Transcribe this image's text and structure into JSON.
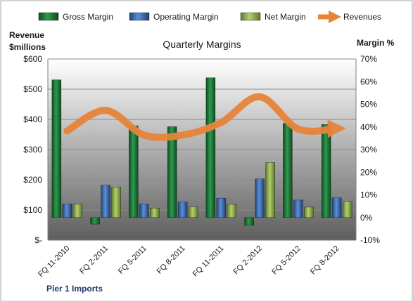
{
  "chart_data": {
    "type": "bar",
    "title": "Quarterly Margins",
    "subtitle": "Pier 1 Imports",
    "y_left_label": [
      "Revenue",
      "$millions"
    ],
    "y_right_label": "Margin %",
    "categories": [
      "FQ 11-2010",
      "FQ 2-2011",
      "FQ 5-2011",
      "FQ 8-2011",
      "FQ 11-2011",
      "FQ 2-2012",
      "FQ 5-2012",
      "FQ 8-2012"
    ],
    "y_left_ticks": [
      "$-",
      "$100",
      "$200",
      "$300",
      "$400",
      "$500",
      "$600"
    ],
    "y_right_ticks": [
      "-10%",
      "0%",
      "10%",
      "20%",
      "30%",
      "40%",
      "50%",
      "60%",
      "70%"
    ],
    "y_left_range": [
      0,
      600
    ],
    "y_right_range": [
      -10,
      70
    ],
    "grid": true,
    "legend_position": "top",
    "series": [
      {
        "name": "Gross Margin",
        "kind": "bar",
        "axis": "right",
        "color": "#1e7a3c",
        "values": [
          60.8,
          -2.9,
          40.5,
          40.1,
          61.7,
          -3.4,
          41.6,
          41.1
        ]
      },
      {
        "name": "Operating Margin",
        "kind": "bar",
        "axis": "right",
        "color": "#3a6bb0",
        "values": [
          6.0,
          14.3,
          6.0,
          6.9,
          8.5,
          17.1,
          7.7,
          8.7
        ]
      },
      {
        "name": "Net Margin",
        "kind": "bar",
        "axis": "right",
        "color": "#9bbb59",
        "values": [
          5.9,
          13.5,
          4.2,
          4.7,
          5.8,
          24.3,
          4.6,
          7.1
        ]
      },
      {
        "name": "Revenues",
        "kind": "line",
        "axis": "left",
        "color": "#e8843a",
        "values": [
          362,
          430,
          348,
          348,
          390,
          475,
          368,
          370
        ]
      }
    ]
  }
}
